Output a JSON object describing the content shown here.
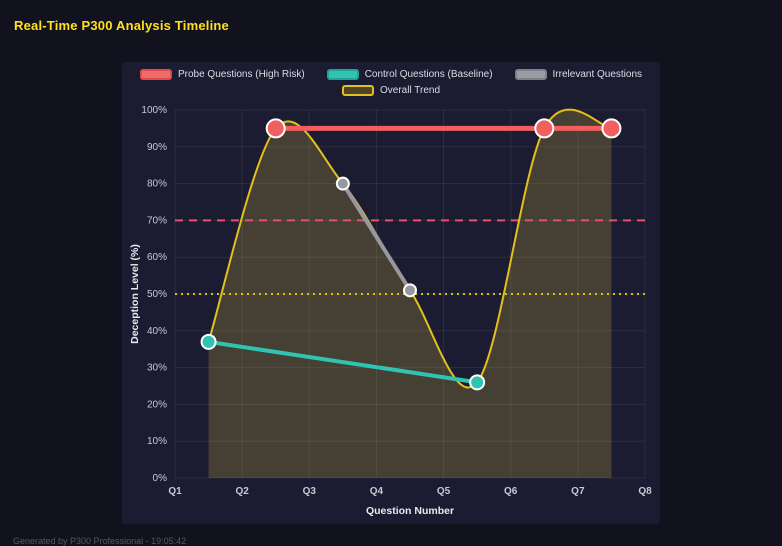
{
  "header": {
    "title": "Real-Time P300 Analysis Timeline"
  },
  "footer": {
    "text": "Generated by P300 Professional - 19:05:42"
  },
  "colors": {
    "background": "#12121f",
    "panel": "#1b1c31",
    "title": "#ffe11a",
    "probe": "#f15f5f",
    "control": "#2fc4b2",
    "irrelevant": "#97979f",
    "trend": "#e3c11b",
    "threshold_high": "#e8506b",
    "threshold_mid": "#d8c400"
  },
  "chart_data": {
    "type": "line",
    "title": "Real-Time P300 Analysis Timeline",
    "xlabel": "Question Number",
    "ylabel": "Deception Level (%)",
    "xlim": [
      1,
      8
    ],
    "ylim": [
      0,
      100
    ],
    "grid": true,
    "legend_position": "top",
    "x_ticks": [
      "Q1",
      "Q2",
      "Q3",
      "Q4",
      "Q5",
      "Q6",
      "Q7",
      "Q8"
    ],
    "y_ticks": [
      "0%",
      "10%",
      "20%",
      "30%",
      "40%",
      "50%",
      "60%",
      "70%",
      "80%",
      "90%",
      "100%"
    ],
    "legend": [
      {
        "label": "Probe Questions (High Risk)",
        "fill": "#f26b6b",
        "border": "#e04a4a"
      },
      {
        "label": "Control Questions (Baseline)",
        "fill": "#2fc4b2",
        "border": "#1fa393"
      },
      {
        "label": "Irrelevant Questions",
        "fill": "#9c9ca4",
        "border": "#7f7f88"
      },
      {
        "label": "Overall Trend",
        "fill": "rgba(227,193,27,0.25)",
        "border": "#e3c11b"
      }
    ],
    "series": [
      {
        "name": "Probe Questions (High Risk)",
        "color": "#f15f5f",
        "x": [
          2.5,
          6.5,
          7.5
        ],
        "y": [
          95,
          95,
          95
        ],
        "line_width": 5,
        "marker_r": 9,
        "marker_stroke": "#ffffff"
      },
      {
        "name": "Control Questions (Baseline)",
        "color": "#2fc4b2",
        "x": [
          1.5,
          5.5
        ],
        "y": [
          37,
          26
        ],
        "line_width": 4,
        "marker_r": 7,
        "marker_stroke": "#ffffff"
      },
      {
        "name": "Irrelevant Questions",
        "color": "#97979f",
        "x": [
          3.5,
          4.5
        ],
        "y": [
          80,
          51
        ],
        "line_width": 4,
        "marker_r": 6,
        "marker_stroke": "#ffffff"
      },
      {
        "name": "Overall Trend",
        "color": "#e3c11b",
        "x": [
          1.5,
          2.5,
          3.5,
          4.5,
          5.5,
          6.5,
          7.5
        ],
        "y": [
          37,
          95,
          80,
          51,
          26,
          95,
          95
        ],
        "line_width": 2,
        "marker_r": 0,
        "smooth": true,
        "fill": "rgba(222,192,60,0.22)"
      }
    ],
    "thresholds": [
      {
        "value": 70,
        "color": "#e8506b",
        "dash": "8 6",
        "width": 2
      },
      {
        "value": 50,
        "color": "#d8c400",
        "dash": "2 4",
        "width": 2
      }
    ]
  }
}
